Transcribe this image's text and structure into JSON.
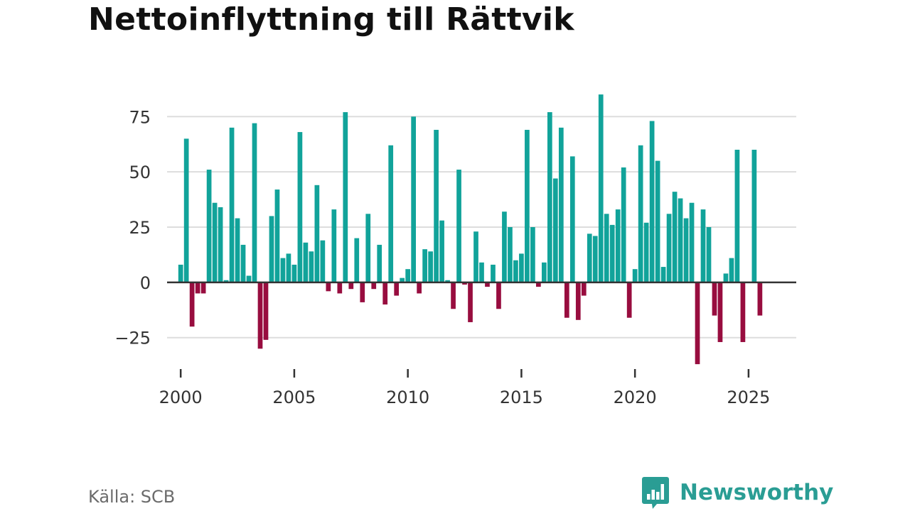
{
  "title": "Nettoinflyttning till Rättvik",
  "source": "Källa: SCB",
  "brand": {
    "name": "Newsworthy",
    "icon": "newsworthy-logo-icon",
    "color": "#2a9d94"
  },
  "colors": {
    "positive": "#11a39a",
    "negative": "#980d3f",
    "grid": "#dddddd",
    "zero_line": "#333333"
  },
  "chart_data": {
    "type": "bar",
    "xlabel": "",
    "ylabel": "",
    "xlim": [
      1999.4,
      2027.1
    ],
    "ylim": [
      -36,
      86
    ],
    "yticks": [
      75,
      50,
      25,
      0,
      -25
    ],
    "ytick_labels": [
      "75",
      "50",
      "25",
      "0",
      "−25"
    ],
    "xticks": [
      2000,
      2005,
      2010,
      2015,
      2020,
      2025
    ],
    "xtick_labels": [
      "2000",
      "2005",
      "2010",
      "2015",
      "2020",
      "2025"
    ],
    "grid": true,
    "legend": "none",
    "frequency": "quarterly",
    "x": [
      "2000 Q1",
      "2000 Q2",
      "2000 Q3",
      "2000 Q4",
      "2001 Q1",
      "2001 Q2",
      "2001 Q3",
      "2001 Q4",
      "2002 Q1",
      "2002 Q2",
      "2002 Q3",
      "2002 Q4",
      "2003 Q1",
      "2003 Q2",
      "2003 Q3",
      "2003 Q4",
      "2004 Q1",
      "2004 Q2",
      "2004 Q3",
      "2004 Q4",
      "2005 Q1",
      "2005 Q2",
      "2005 Q3",
      "2005 Q4",
      "2006 Q1",
      "2006 Q2",
      "2006 Q3",
      "2006 Q4",
      "2007 Q1",
      "2007 Q2",
      "2007 Q3",
      "2007 Q4",
      "2008 Q1",
      "2008 Q2",
      "2008 Q3",
      "2008 Q4",
      "2009 Q1",
      "2009 Q2",
      "2009 Q3",
      "2009 Q4",
      "2010 Q1",
      "2010 Q2",
      "2010 Q3",
      "2010 Q4",
      "2011 Q1",
      "2011 Q2",
      "2011 Q3",
      "2011 Q4",
      "2012 Q1",
      "2012 Q2",
      "2012 Q3",
      "2012 Q4",
      "2013 Q1",
      "2013 Q2",
      "2013 Q3",
      "2013 Q4",
      "2014 Q1",
      "2014 Q2",
      "2014 Q3",
      "2014 Q4",
      "2015 Q1",
      "2015 Q2",
      "2015 Q3",
      "2015 Q4",
      "2016 Q1",
      "2016 Q2",
      "2016 Q3",
      "2016 Q4",
      "2017 Q1",
      "2017 Q2",
      "2017 Q3",
      "2017 Q4",
      "2018 Q1",
      "2018 Q2",
      "2018 Q3",
      "2018 Q4",
      "2019 Q1",
      "2019 Q2",
      "2019 Q3",
      "2019 Q4",
      "2020 Q1",
      "2020 Q2",
      "2020 Q3",
      "2020 Q4",
      "2021 Q1",
      "2021 Q2",
      "2021 Q3",
      "2021 Q4",
      "2022 Q1",
      "2022 Q2",
      "2022 Q3",
      "2022 Q4",
      "2023 Q1",
      "2023 Q2",
      "2023 Q3",
      "2023 Q4",
      "2024 Q1",
      "2024 Q2",
      "2024 Q3",
      "2024 Q4",
      "2025 Q1",
      "2025 Q2",
      "2025 Q3",
      "2025 Q4",
      "2026 Q1",
      "2026 Q2"
    ],
    "values": [
      8,
      65,
      -20,
      -5,
      -5,
      51,
      36,
      34,
      1,
      70,
      29,
      17,
      3,
      72,
      -30,
      -26,
      30,
      42,
      11,
      13,
      8,
      68,
      18,
      14,
      44,
      19,
      -4,
      33,
      -5,
      77,
      -3,
      20,
      -9,
      31,
      -3,
      17,
      -10,
      62,
      -6,
      2,
      6,
      75,
      -5,
      15,
      14,
      69,
      28,
      1,
      -12,
      51,
      -1,
      -18,
      23,
      9,
      -2,
      8,
      -12,
      32,
      25,
      10,
      13,
      69,
      25,
      -2,
      9,
      77,
      47,
      70,
      -16,
      57,
      -17,
      -6,
      22,
      21,
      85,
      31,
      26,
      33,
      52,
      -16,
      6,
      62,
      27,
      73,
      55,
      7,
      31,
      41,
      38,
      29,
      36,
      -37,
      33,
      25,
      -15,
      -27,
      4,
      11,
      60,
      -27,
      0,
      60,
      -15,
      0,
      0,
      0
    ]
  }
}
